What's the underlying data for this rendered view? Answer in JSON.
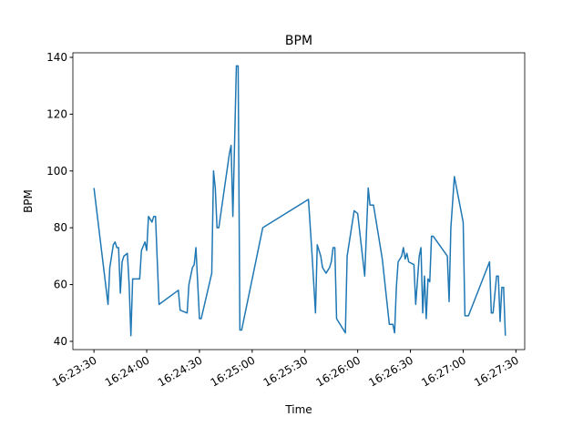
{
  "chart_data": {
    "type": "line",
    "title": "BPM",
    "x_label": "Time",
    "y_label": "BPM",
    "color": "#1f77b4",
    "x": [
      "16:23:30",
      "16:23:38",
      "16:23:39",
      "16:23:41",
      "16:23:42",
      "16:23:43",
      "16:23:44",
      "16:23:45",
      "16:23:46",
      "16:23:47",
      "16:23:49",
      "16:23:50",
      "16:23:51",
      "16:23:52",
      "16:23:56",
      "16:23:57",
      "16:23:59",
      "16:24:00",
      "16:24:01",
      "16:24:03",
      "16:24:04",
      "16:24:05",
      "16:24:07",
      "16:24:18",
      "16:24:19",
      "16:24:23",
      "16:24:24",
      "16:24:26",
      "16:24:27",
      "16:24:28",
      "16:24:30",
      "16:24:31",
      "16:24:37",
      "16:24:38",
      "16:24:39",
      "16:24:40",
      "16:24:41",
      "16:24:47",
      "16:24:48",
      "16:24:49",
      "16:24:51",
      "16:24:52",
      "16:24:53",
      "16:24:54",
      "16:25:06",
      "16:25:32",
      "16:25:34",
      "16:25:36",
      "16:25:37",
      "16:25:39",
      "16:25:40",
      "16:25:42",
      "16:25:44",
      "16:25:45",
      "16:25:46",
      "16:25:47",
      "16:25:48",
      "16:25:49",
      "16:25:53",
      "16:25:54",
      "16:25:56",
      "16:25:58",
      "16:26:00",
      "16:26:04",
      "16:26:06",
      "16:26:07",
      "16:26:09",
      "16:26:14",
      "16:26:18",
      "16:26:20",
      "16:26:21",
      "16:26:22",
      "16:26:23",
      "16:26:25",
      "16:26:26",
      "16:26:27",
      "16:26:28",
      "16:26:29",
      "16:26:32",
      "16:26:33",
      "16:26:35",
      "16:26:36",
      "16:26:37",
      "16:26:38",
      "16:26:39",
      "16:26:40",
      "16:26:41",
      "16:26:42",
      "16:26:43",
      "16:26:51",
      "16:26:52",
      "16:26:53",
      "16:26:55",
      "16:27:00",
      "16:27:01",
      "16:27:03",
      "16:27:15",
      "16:27:16",
      "16:27:17",
      "16:27:19",
      "16:27:20",
      "16:27:21",
      "16:27:22",
      "16:27:23",
      "16:27:24"
    ],
    "values": [
      94,
      53,
      66,
      74,
      75,
      73,
      73,
      57,
      68,
      70,
      71,
      60,
      42,
      62,
      62,
      72,
      75,
      72,
      84,
      82,
      84,
      84,
      53,
      58,
      51,
      50,
      60,
      66,
      67,
      73,
      48,
      48,
      64,
      100,
      94,
      80,
      80,
      106,
      109,
      84,
      137,
      137,
      44,
      44,
      80,
      90,
      71,
      50,
      74,
      70,
      66,
      64,
      66,
      68,
      73,
      73,
      48,
      47,
      43,
      70,
      78,
      86,
      85,
      63,
      94,
      88,
      88,
      69,
      46,
      46,
      43,
      59,
      68,
      70,
      73,
      69,
      71,
      68,
      67,
      53,
      70,
      73,
      50,
      63,
      48,
      62,
      61,
      77,
      77,
      70,
      54,
      80,
      98,
      82,
      49,
      49,
      68,
      50,
      50,
      63,
      63,
      47,
      59,
      59,
      42
    ],
    "xlim": [
      "16:23:18",
      "16:27:35"
    ],
    "xticks": [
      "16:23:30",
      "16:24:00",
      "16:24:30",
      "16:25:00",
      "16:25:30",
      "16:26:00",
      "16:26:30",
      "16:27:00",
      "16:27:30"
    ],
    "ylim": [
      37.1,
      141.6
    ],
    "yticks": [
      40,
      60,
      80,
      100,
      120,
      140
    ]
  }
}
